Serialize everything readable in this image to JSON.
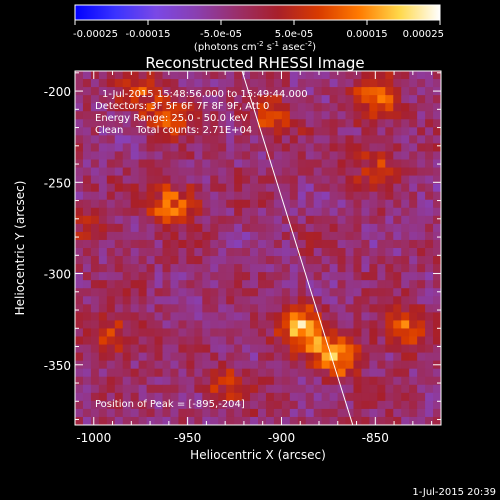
{
  "colorbar": {
    "ticks": [
      "-0.00025",
      "-0.00015",
      "-5.0e-05",
      "5.0e-05",
      "0.00015",
      "0.00025"
    ],
    "tick_values": [
      -0.00025,
      -0.00015,
      -5e-05,
      5e-05,
      0.00015,
      0.00025
    ],
    "unit_parts": {
      "a": "(photons cm",
      "b": "-2",
      "c": " s",
      "d": "-1",
      "e": " asec",
      "f": "-2",
      "g": ")"
    },
    "colormap": [
      "#0000ff",
      "#3a33ff",
      "#7a48e6",
      "#8a3fb0",
      "#9a2f6a",
      "#a81f2a",
      "#d83a00",
      "#ff7a00",
      "#ffd84a",
      "#ffffff"
    ]
  },
  "chart_data": {
    "type": "heatmap",
    "title": "Reconstructed RHESSI Image",
    "xlabel": "Heliocentric X (arcsec)",
    "ylabel": "Heliocentric Y (arcsec)",
    "xlim": [
      -1010,
      -815
    ],
    "ylim": [
      -383,
      -189
    ],
    "xticks": [
      -1000,
      -950,
      -900,
      -850
    ],
    "yticks": [
      -200,
      -250,
      -300,
      -350
    ],
    "xtick_labels": [
      "-1000",
      "-950",
      "-900",
      "-850"
    ],
    "ytick_labels": [
      "-200",
      "-250",
      "-300",
      "-350"
    ],
    "limb_line": {
      "x": [
        -921,
        -862
      ],
      "y": [
        -189,
        -383
      ]
    },
    "peak": {
      "x": -895,
      "y": -204
    },
    "annotations": {
      "time_range": "1-Jul-2015 15:48:56.000 to 15:49:44.000",
      "detectors": "Detectors: 3F 5F 6F 7F 8F 9F, Att 0",
      "energy_range": "Energy Range: 25.0 - 50.0 keV",
      "clean_counts": "Clean    Total counts: 2.71E+04",
      "peak_position": "Position of Peak = [-895,-204]"
    },
    "emission_regions": [
      {
        "x": -890,
        "y": -330,
        "level": 0.00025
      },
      {
        "x": -870,
        "y": -345,
        "level": 0.0002
      },
      {
        "x": -958,
        "y": -262,
        "level": 0.00018
      },
      {
        "x": -850,
        "y": -205,
        "level": 0.00015
      },
      {
        "x": -960,
        "y": -215,
        "level": 0.00014
      },
      {
        "x": -835,
        "y": -330,
        "level": 0.00016
      },
      {
        "x": -990,
        "y": -335,
        "level": 0.00012
      },
      {
        "x": -905,
        "y": -215,
        "level": 0.00012
      },
      {
        "x": -850,
        "y": -240,
        "level": 0.0001
      },
      {
        "x": -930,
        "y": -360,
        "level": 9e-05
      },
      {
        "x": -975,
        "y": -200,
        "level": 0.0001
      },
      {
        "x": -1000,
        "y": -275,
        "level": 7e-05
      }
    ]
  },
  "footer": {
    "timestamp": "1-Jul-2015 20:39"
  }
}
